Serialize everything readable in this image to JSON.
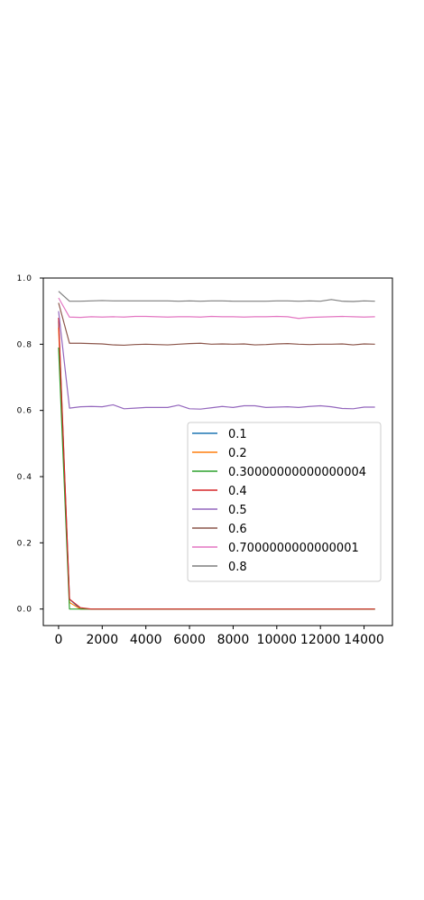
{
  "chart_data": {
    "type": "line",
    "title": "",
    "xlabel": "",
    "ylabel": "",
    "xlim": [
      -700,
      15300
    ],
    "ylim": [
      -0.05,
      1.0
    ],
    "xticks": [
      0,
      2000,
      4000,
      6000,
      8000,
      10000,
      12000,
      14000
    ],
    "xtick_labels": [
      "0",
      "2000",
      "4000",
      "6000",
      "8000",
      "10000",
      "12000",
      "14000"
    ],
    "yticks": [
      0.0,
      0.2,
      0.4,
      0.6,
      0.8,
      1.0
    ],
    "ytick_labels": [
      "0.0",
      "0.2",
      "0.4",
      "0.6",
      "0.8",
      "1.0"
    ],
    "grid": false,
    "legend_position": "center-right",
    "series": [
      {
        "name": "0.1",
        "color": "#1f77b4",
        "x": [
          0,
          500,
          1000,
          1500,
          2000,
          3000,
          4000,
          5000,
          6000,
          7000,
          8000,
          9000,
          10000,
          11000,
          12000,
          13000,
          14000,
          14500
        ],
        "y": [
          0.87,
          0.03,
          0.0,
          0.0,
          0.0,
          0.0,
          0.0,
          0.0,
          0.0,
          0.0,
          0.0,
          0.0,
          0.0,
          0.0,
          0.0,
          0.0,
          0.0,
          0.0
        ]
      },
      {
        "name": "0.2",
        "color": "#ff7f0e",
        "x": [
          0,
          500,
          1000,
          1500,
          2000,
          3000,
          4000,
          5000,
          6000,
          7000,
          8000,
          9000,
          10000,
          11000,
          12000,
          13000,
          14000,
          14500
        ],
        "y": [
          0.85,
          0.02,
          0.0,
          0.0,
          0.0,
          0.0,
          0.0,
          0.0,
          0.0,
          0.0,
          0.0,
          0.0,
          0.0,
          0.0,
          0.0,
          0.0,
          0.0,
          0.0
        ]
      },
      {
        "name": "0.30000000000000004",
        "color": "#2ca02c",
        "x": [
          0,
          500,
          1000,
          1500,
          2000,
          3000,
          4000,
          5000,
          6000,
          7000,
          8000,
          9000,
          10000,
          11000,
          12000,
          13000,
          14000,
          14500
        ],
        "y": [
          0.79,
          0.0,
          0.0,
          0.0,
          0.0,
          0.0,
          0.0,
          0.0,
          0.0,
          0.0,
          0.0,
          0.0,
          0.0,
          0.0,
          0.0,
          0.0,
          0.0,
          0.0
        ]
      },
      {
        "name": "0.4",
        "color": "#d62728",
        "x": [
          0,
          500,
          1000,
          1500,
          2000,
          3000,
          4000,
          5000,
          6000,
          7000,
          8000,
          9000,
          10000,
          11000,
          12000,
          13000,
          14000,
          14500
        ],
        "y": [
          0.88,
          0.03,
          0.004,
          0.0,
          0.0,
          0.0,
          0.0,
          0.0,
          0.0,
          0.0,
          0.0,
          0.0,
          0.0,
          0.0,
          0.0,
          0.0,
          0.0,
          0.0
        ]
      },
      {
        "name": "0.5",
        "color": "#9467bd",
        "x": [
          0,
          500,
          1000,
          1500,
          2000,
          2500,
          3000,
          3500,
          4000,
          4500,
          5000,
          5500,
          6000,
          6500,
          7000,
          7500,
          8000,
          8500,
          9000,
          9500,
          10000,
          10500,
          11000,
          11500,
          12000,
          12500,
          13000,
          13500,
          14000,
          14500
        ],
        "y": [
          0.9,
          0.607,
          0.611,
          0.612,
          0.611,
          0.617,
          0.605,
          0.607,
          0.609,
          0.609,
          0.609,
          0.616,
          0.605,
          0.604,
          0.608,
          0.612,
          0.609,
          0.614,
          0.614,
          0.609,
          0.61,
          0.611,
          0.609,
          0.612,
          0.614,
          0.611,
          0.606,
          0.605,
          0.61,
          0.61
        ]
      },
      {
        "name": "0.6",
        "color": "#8c564b",
        "x": [
          0,
          500,
          1000,
          1500,
          2000,
          2500,
          3000,
          3500,
          4000,
          4500,
          5000,
          5500,
          6000,
          6500,
          7000,
          7500,
          8000,
          8500,
          9000,
          9500,
          10000,
          10500,
          11000,
          11500,
          12000,
          12500,
          13000,
          13500,
          14000,
          14500
        ],
        "y": [
          0.925,
          0.803,
          0.803,
          0.802,
          0.801,
          0.798,
          0.797,
          0.799,
          0.8,
          0.799,
          0.798,
          0.8,
          0.802,
          0.803,
          0.8,
          0.801,
          0.8,
          0.801,
          0.798,
          0.799,
          0.801,
          0.802,
          0.8,
          0.799,
          0.8,
          0.8,
          0.801,
          0.798,
          0.801,
          0.8
        ]
      },
      {
        "name": "0.7000000000000001",
        "color": "#e377c2",
        "x": [
          0,
          500,
          1000,
          1500,
          2000,
          2500,
          3000,
          3500,
          4000,
          4500,
          5000,
          5500,
          6000,
          6500,
          7000,
          7500,
          8000,
          8500,
          9000,
          9500,
          10000,
          10500,
          11000,
          11500,
          12000,
          12500,
          13000,
          13500,
          14000,
          14500
        ],
        "y": [
          0.94,
          0.882,
          0.881,
          0.883,
          0.882,
          0.883,
          0.882,
          0.884,
          0.884,
          0.883,
          0.882,
          0.883,
          0.883,
          0.882,
          0.884,
          0.883,
          0.883,
          0.882,
          0.883,
          0.883,
          0.884,
          0.883,
          0.878,
          0.881,
          0.882,
          0.883,
          0.884,
          0.883,
          0.882,
          0.883
        ]
      },
      {
        "name": "0.8",
        "color": "#7f7f7f",
        "x": [
          0,
          500,
          1000,
          1500,
          2000,
          2500,
          3000,
          3500,
          4000,
          4500,
          5000,
          5500,
          6000,
          6500,
          7000,
          7500,
          8000,
          8500,
          9000,
          9500,
          10000,
          10500,
          11000,
          11500,
          12000,
          12500,
          13000,
          13500,
          14000,
          14500
        ],
        "y": [
          0.96,
          0.93,
          0.93,
          0.931,
          0.932,
          0.931,
          0.931,
          0.931,
          0.931,
          0.931,
          0.931,
          0.93,
          0.931,
          0.93,
          0.931,
          0.931,
          0.93,
          0.93,
          0.93,
          0.93,
          0.931,
          0.931,
          0.93,
          0.931,
          0.93,
          0.935,
          0.93,
          0.929,
          0.931,
          0.93
        ]
      }
    ]
  }
}
